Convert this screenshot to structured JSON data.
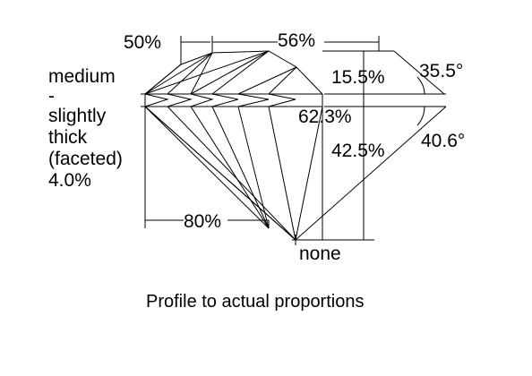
{
  "girdle": {
    "lines": [
      "medium",
      "-",
      "slightly",
      "thick",
      "(faceted)",
      "4.0%"
    ]
  },
  "labels": {
    "star": "50%",
    "table": "56%",
    "crown_height": "15.5%",
    "crown_angle": "35.5°",
    "total_depth": "62.3%",
    "pavilion_depth": "42.5%",
    "pavilion_angle": "40.6°",
    "lower_half": "80%",
    "culet": "none"
  },
  "caption": "Profile to actual proportions"
}
